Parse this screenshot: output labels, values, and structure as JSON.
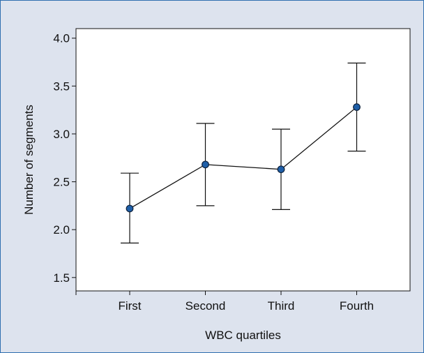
{
  "chart_data": {
    "type": "line",
    "title": "",
    "xlabel": "WBC quartiles",
    "ylabel": "Number of segments",
    "categories": [
      "First",
      "Second",
      "Third",
      "Fourth"
    ],
    "ylim": [
      1.36,
      4.1
    ],
    "yticks": [
      "1.5",
      "2.0",
      "2.5",
      "3.0",
      "3.5",
      "4.0"
    ],
    "grid": false,
    "series": [
      {
        "values": [
          2.22,
          2.68,
          2.63,
          3.28
        ],
        "error_lower": [
          1.86,
          2.25,
          2.21,
          2.82
        ],
        "error_upper": [
          2.59,
          3.11,
          3.05,
          3.74
        ]
      }
    ],
    "colors": {
      "panel_background": "#dde3ee",
      "plot_background": "#ffffff",
      "marker_fill": "#1f5fa8",
      "line": "#111111",
      "frame_border": "#2f6fb0"
    }
  }
}
